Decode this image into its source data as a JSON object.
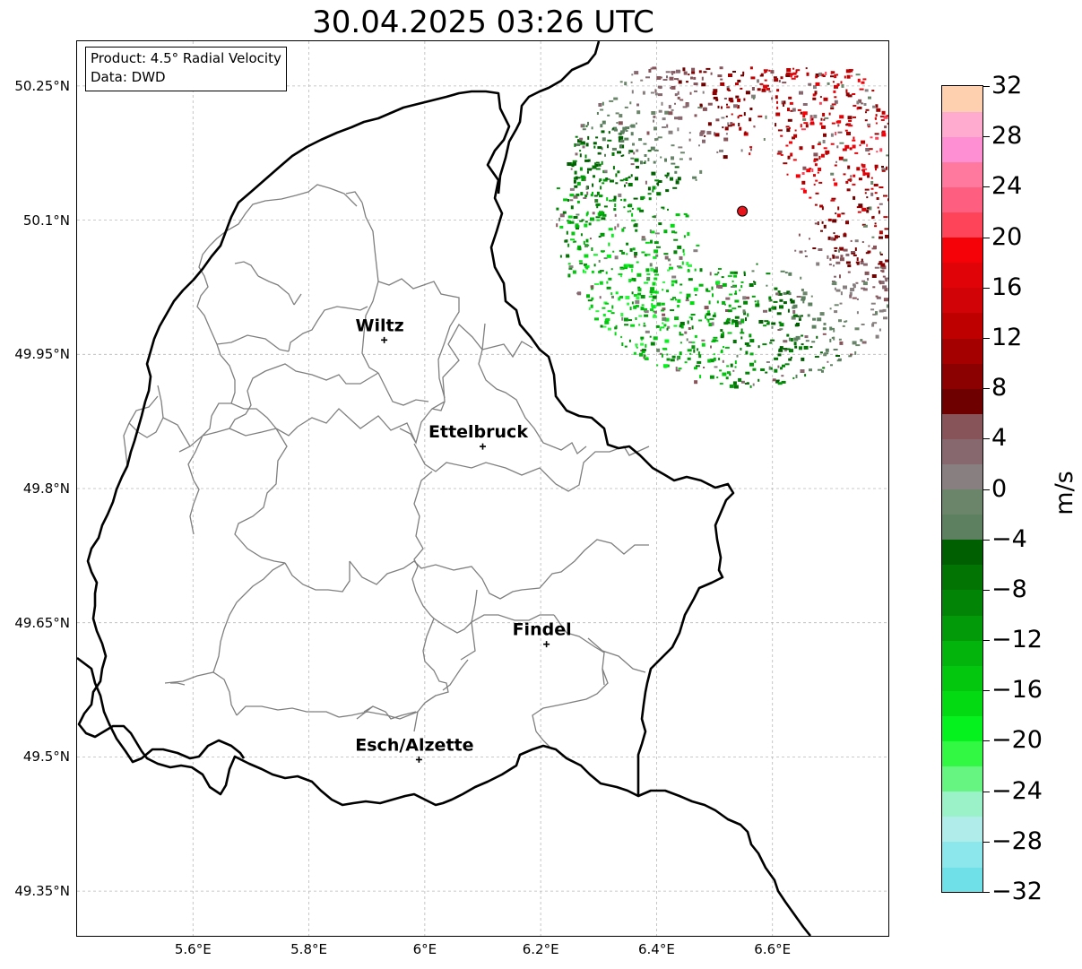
{
  "title": "30.04.2025 03:26 UTC",
  "info": {
    "product_line": "Product: 4.5° Radial Velocity",
    "data_line": "Data: DWD"
  },
  "axes": {
    "lon_min": 5.4,
    "lon_max": 6.8,
    "lat_min": 49.3,
    "lat_max": 50.3,
    "lon_ticks": [
      {
        "value": 5.6,
        "label": "5.6°E"
      },
      {
        "value": 5.8,
        "label": "5.8°E"
      },
      {
        "value": 6.0,
        "label": "6°E"
      },
      {
        "value": 6.2,
        "label": "6.2°E"
      },
      {
        "value": 6.4,
        "label": "6.4°E"
      },
      {
        "value": 6.6,
        "label": "6.6°E"
      }
    ],
    "lat_ticks": [
      {
        "value": 50.25,
        "label": "50.25°N"
      },
      {
        "value": 50.1,
        "label": "50.1°N"
      },
      {
        "value": 49.95,
        "label": "49.95°N"
      },
      {
        "value": 49.8,
        "label": "49.8°N"
      },
      {
        "value": 49.65,
        "label": "49.65°N"
      },
      {
        "value": 49.5,
        "label": "49.5°N"
      },
      {
        "value": 49.35,
        "label": "49.35°N"
      }
    ],
    "grid": true
  },
  "cities": [
    {
      "name": "Wiltz",
      "lon": 5.93,
      "lat": 49.966
    },
    {
      "name": "Ettelbruck",
      "lon": 6.1,
      "lat": 49.847
    },
    {
      "name": "Findel",
      "lon": 6.21,
      "lat": 49.626
    },
    {
      "name": "Esch/Alzette",
      "lon": 5.99,
      "lat": 49.497
    }
  ],
  "radar_site": {
    "lon": 6.548,
    "lat": 50.11,
    "color": "#e8141c"
  },
  "colorbar": {
    "label": "m/s",
    "min": -32,
    "max": 32,
    "tick_values": [
      -32,
      -28,
      -24,
      -20,
      -16,
      -12,
      -8,
      -4,
      0,
      4,
      8,
      12,
      16,
      20,
      24,
      28,
      32
    ],
    "tick_labels": [
      "−32",
      "−28",
      "−24",
      "−20",
      "−16",
      "−12",
      "−8",
      "−4",
      "0",
      "4",
      "8",
      "12",
      "16",
      "20",
      "24",
      "28",
      "32"
    ],
    "colors": [
      "#6fe0e8",
      "#8ce7ec",
      "#b0ecea",
      "#9cf2c8",
      "#66f581",
      "#32f743",
      "#05f21e",
      "#03da11",
      "#03c60f",
      "#02b40c",
      "#039a0a",
      "#028506",
      "#017403",
      "#005f00",
      "#5d8060",
      "#6a856a",
      "#888080",
      "#87686f",
      "#87545a",
      "#6e0000",
      "#8b0000",
      "#a50000",
      "#bf0000",
      "#d10306",
      "#e00308",
      "#f50208",
      "#fd4459",
      "#fe5e80",
      "#ff789e",
      "#ff8fd3",
      "#ffabcf",
      "#ffd0b0"
    ]
  }
}
